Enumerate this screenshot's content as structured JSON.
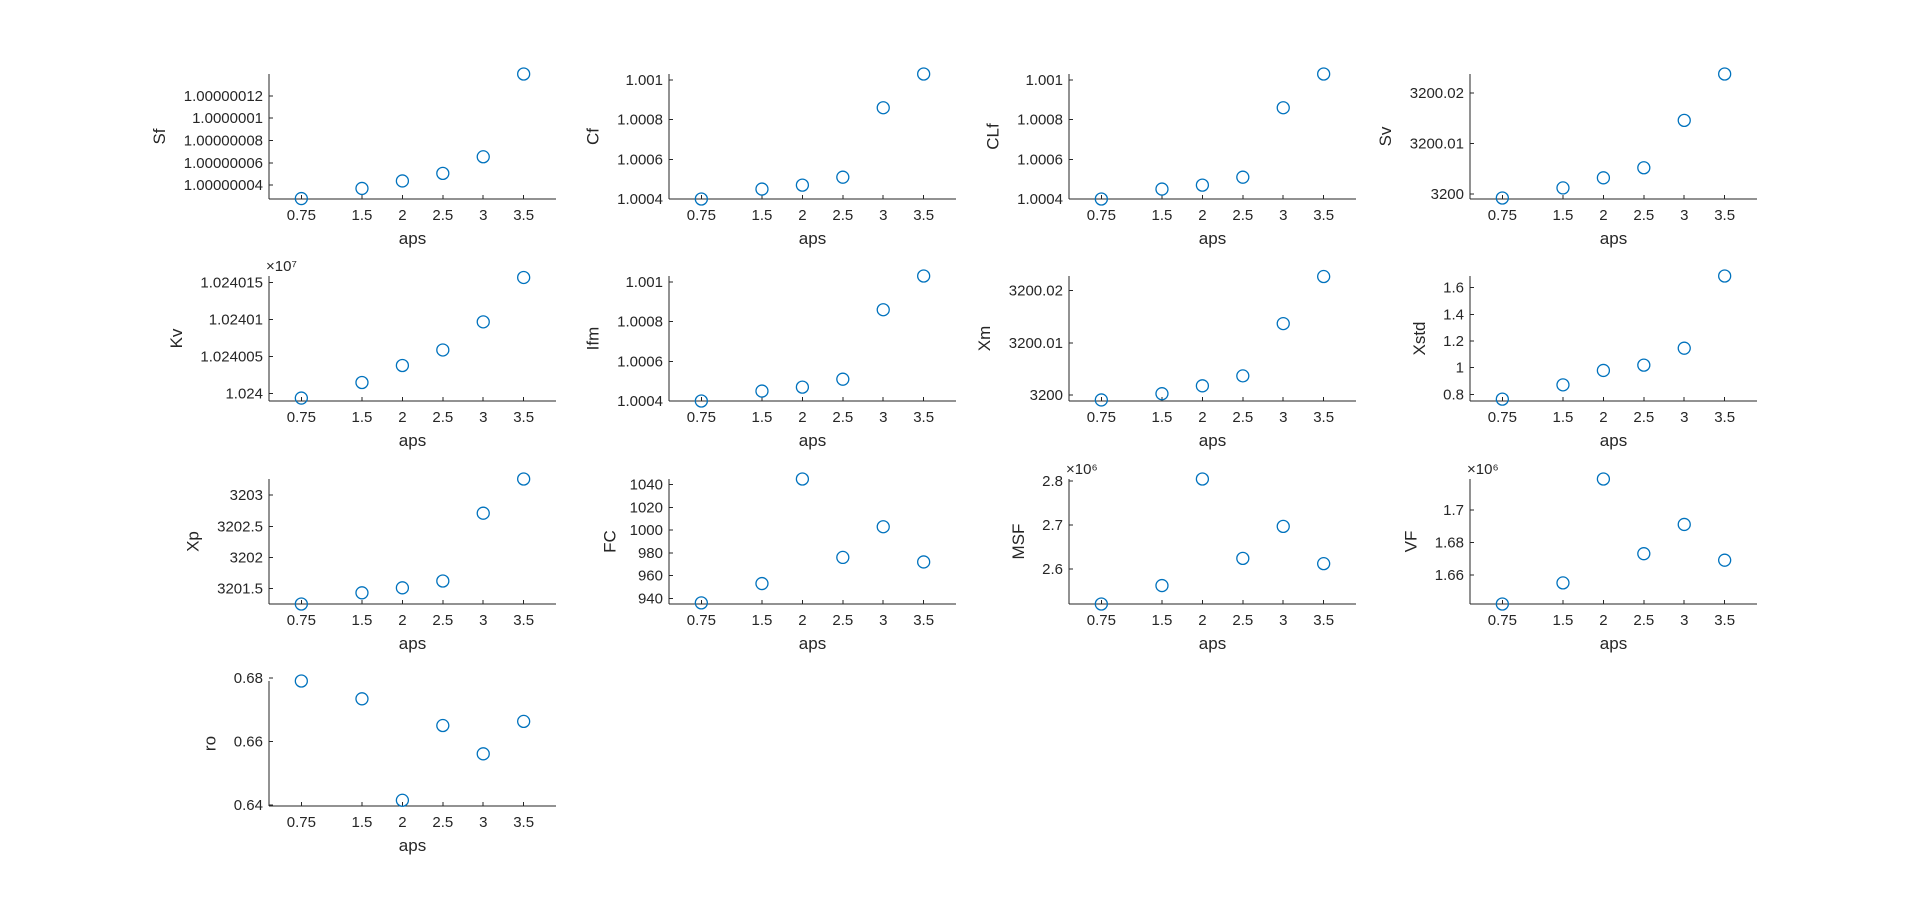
{
  "figure": {
    "marker_color": "#0072BD",
    "axis_color": "#262626",
    "background": "#ffffff"
  },
  "chart_data": [
    {
      "name": "Sf",
      "type": "scatter",
      "xlabel": "aps",
      "ylabel": "Sf",
      "exponent": "",
      "x": [
        0.75,
        1.5,
        2,
        2.5,
        3,
        3.5
      ],
      "y": [
        1.0000000279,
        1.000000037,
        1.0000000437,
        1.0000000505,
        1.0000000654,
        1.0000001397
      ],
      "ylim": [
        1.0000000275,
        1.0000001397
      ],
      "yticks": [
        1.00000004,
        1.00000006,
        1.00000008,
        1.0000001,
        1.00000012
      ],
      "ytick_labels": [
        "1.00000004",
        "1.00000006",
        "1.00000008",
        "1.0000001",
        "1.00000012"
      ],
      "xticks": [
        0.75,
        1.5,
        2,
        2.5,
        3,
        3.5
      ],
      "xtick_labels": [
        "0.75",
        "1.5",
        "2",
        "2.5",
        "3",
        "3.5"
      ]
    },
    {
      "name": "Cf",
      "type": "scatter",
      "xlabel": "aps",
      "ylabel": "Cf",
      "exponent": "",
      "x": [
        0.75,
        1.5,
        2,
        2.5,
        3,
        3.5
      ],
      "y": [
        1.0004,
        1.00045,
        1.00047,
        1.00051,
        1.00086,
        1.00103
      ],
      "ylim": [
        1.0004,
        1.00103
      ],
      "yticks": [
        1.0004,
        1.0006,
        1.0008,
        1.001
      ],
      "ytick_labels": [
        "1.0004",
        "1.0006",
        "1.0008",
        "1.001"
      ],
      "xticks": [
        0.75,
        1.5,
        2,
        2.5,
        3,
        3.5
      ],
      "xtick_labels": [
        "0.75",
        "1.5",
        "2",
        "2.5",
        "3",
        "3.5"
      ]
    },
    {
      "name": "CLf",
      "type": "scatter",
      "xlabel": "aps",
      "ylabel": "CLf",
      "exponent": "",
      "x": [
        0.75,
        1.5,
        2,
        2.5,
        3,
        3.5
      ],
      "y": [
        1.0004,
        1.00045,
        1.00047,
        1.00051,
        1.00086,
        1.00103
      ],
      "ylim": [
        1.0004,
        1.00103
      ],
      "yticks": [
        1.0004,
        1.0006,
        1.0008,
        1.001
      ],
      "ytick_labels": [
        "1.0004",
        "1.0006",
        "1.0008",
        "1.001"
      ],
      "xticks": [
        0.75,
        1.5,
        2,
        2.5,
        3,
        3.5
      ],
      "xtick_labels": [
        "0.75",
        "1.5",
        "2",
        "2.5",
        "3",
        "3.5"
      ]
    },
    {
      "name": "Sv",
      "type": "scatter",
      "xlabel": "aps",
      "ylabel": "Sv",
      "exponent": "",
      "x": [
        0.75,
        1.5,
        2,
        2.5,
        3,
        3.5
      ],
      "y": [
        3199.9992,
        3200.0012,
        3200.0032,
        3200.0052,
        3200.0146,
        3200.0238
      ],
      "ylim": [
        3199.999,
        3200.0238
      ],
      "yticks": [
        3200,
        3200.01,
        3200.02
      ],
      "ytick_labels": [
        "3200",
        "3200.01",
        "3200.02"
      ],
      "xticks": [
        0.75,
        1.5,
        2,
        2.5,
        3,
        3.5
      ],
      "xtick_labels": [
        "0.75",
        "1.5",
        "2",
        "2.5",
        "3",
        "3.5"
      ]
    },
    {
      "name": "Kv",
      "type": "scatter",
      "xlabel": "aps",
      "ylabel": "Kv",
      "exponent": "×10⁷",
      "x": [
        0.75,
        1.5,
        2,
        2.5,
        3,
        3.5
      ],
      "y": [
        1.0239994,
        1.0240015,
        1.0240038,
        1.0240059,
        1.0240097,
        1.0240157
      ],
      "ylim": [
        1.023999,
        1.0240159
      ],
      "yticks": [
        1.024,
        1.024005,
        1.02401,
        1.024015
      ],
      "ytick_labels": [
        "1.024",
        "1.024005",
        "1.02401",
        "1.024015"
      ],
      "xticks": [
        0.75,
        1.5,
        2,
        2.5,
        3,
        3.5
      ],
      "xtick_labels": [
        "0.75",
        "1.5",
        "2",
        "2.5",
        "3",
        "3.5"
      ]
    },
    {
      "name": "Ifm",
      "type": "scatter",
      "xlabel": "aps",
      "ylabel": "Ifm",
      "exponent": "",
      "x": [
        0.75,
        1.5,
        2,
        2.5,
        3,
        3.5
      ],
      "y": [
        1.0004,
        1.00045,
        1.00047,
        1.00051,
        1.00086,
        1.00103
      ],
      "ylim": [
        1.0004,
        1.00103
      ],
      "yticks": [
        1.0004,
        1.0006,
        1.0008,
        1.001
      ],
      "ytick_labels": [
        "1.0004",
        "1.0006",
        "1.0008",
        "1.001"
      ],
      "xticks": [
        0.75,
        1.5,
        2,
        2.5,
        3,
        3.5
      ],
      "xtick_labels": [
        "0.75",
        "1.5",
        "2",
        "2.5",
        "3",
        "3.5"
      ]
    },
    {
      "name": "Xm",
      "type": "scatter",
      "xlabel": "aps",
      "ylabel": "Xm",
      "exponent": "",
      "x": [
        0.75,
        1.5,
        2,
        2.5,
        3,
        3.5
      ],
      "y": [
        3199.9991,
        3200.0003,
        3200.0018,
        3200.0037,
        3200.0137,
        3200.0227
      ],
      "ylim": [
        3199.9989,
        3200.0228
      ],
      "yticks": [
        3200,
        3200.01,
        3200.02
      ],
      "ytick_labels": [
        "3200",
        "3200.01",
        "3200.02"
      ],
      "xticks": [
        0.75,
        1.5,
        2,
        2.5,
        3,
        3.5
      ],
      "xtick_labels": [
        "0.75",
        "1.5",
        "2",
        "2.5",
        "3",
        "3.5"
      ]
    },
    {
      "name": "Xstd",
      "type": "scatter",
      "xlabel": "aps",
      "ylabel": "Xstd",
      "exponent": "",
      "x": [
        0.75,
        1.5,
        2,
        2.5,
        3,
        3.5
      ],
      "y": [
        0.764,
        0.871,
        0.979,
        1.019,
        1.146,
        1.687
      ],
      "ylim": [
        0.75,
        1.687
      ],
      "yticks": [
        0.8,
        1,
        1.2,
        1.4,
        1.6
      ],
      "ytick_labels": [
        "0.8",
        "1",
        "1.2",
        "1.4",
        "1.6"
      ],
      "xticks": [
        0.75,
        1.5,
        2,
        2.5,
        3,
        3.5
      ],
      "xtick_labels": [
        "0.75",
        "1.5",
        "2",
        "2.5",
        "3",
        "3.5"
      ]
    },
    {
      "name": "Xp",
      "type": "scatter",
      "xlabel": "aps",
      "ylabel": "Xp",
      "exponent": "",
      "x": [
        0.75,
        1.5,
        2,
        2.5,
        3,
        3.5
      ],
      "y": [
        3201.25,
        3201.43,
        3201.51,
        3201.62,
        3202.71,
        3203.26
      ],
      "ylim": [
        3201.25,
        3203.26
      ],
      "yticks": [
        3201.5,
        3202,
        3202.5,
        3203
      ],
      "ytick_labels": [
        "3201.5",
        "3202",
        "3202.5",
        "3203"
      ],
      "xticks": [
        0.75,
        1.5,
        2,
        2.5,
        3,
        3.5
      ],
      "xtick_labels": [
        "0.75",
        "1.5",
        "2",
        "2.5",
        "3",
        "3.5"
      ]
    },
    {
      "name": "FC",
      "type": "scatter",
      "xlabel": "aps",
      "ylabel": "FC",
      "exponent": "",
      "x": [
        0.75,
        1.5,
        2,
        2.5,
        3,
        3.5
      ],
      "y": [
        936,
        953,
        1045,
        976,
        1003,
        972
      ],
      "ylim": [
        935,
        1045
      ],
      "yticks": [
        940,
        960,
        980,
        1000,
        1020,
        1040
      ],
      "ytick_labels": [
        "940",
        "960",
        "980",
        "1000",
        "1020",
        "1040"
      ],
      "xticks": [
        0.75,
        1.5,
        2,
        2.5,
        3,
        3.5
      ],
      "xtick_labels": [
        "0.75",
        "1.5",
        "2",
        "2.5",
        "3",
        "3.5"
      ]
    },
    {
      "name": "MSF",
      "type": "scatter",
      "xlabel": "aps",
      "ylabel": "MSF",
      "exponent": "×10⁶",
      "x": [
        0.75,
        1.5,
        2,
        2.5,
        3,
        3.5
      ],
      "y": [
        2.52,
        2.562,
        2.805,
        2.624,
        2.697,
        2.612
      ],
      "ylim": [
        2.52,
        2.805
      ],
      "yticks": [
        2.6,
        2.7,
        2.8
      ],
      "ytick_labels": [
        "2.6",
        "2.7",
        "2.8"
      ],
      "xticks": [
        0.75,
        1.5,
        2,
        2.5,
        3,
        3.5
      ],
      "xtick_labels": [
        "0.75",
        "1.5",
        "2",
        "2.5",
        "3",
        "3.5"
      ]
    },
    {
      "name": "VF",
      "type": "scatter",
      "xlabel": "aps",
      "ylabel": "VF",
      "exponent": "×10⁶",
      "x": [
        0.75,
        1.5,
        2,
        2.5,
        3,
        3.5
      ],
      "y": [
        1.642,
        1.655,
        1.719,
        1.673,
        1.691,
        1.669
      ],
      "ylim": [
        1.642,
        1.719
      ],
      "yticks": [
        1.66,
        1.68,
        1.7
      ],
      "ytick_labels": [
        "1.66",
        "1.68",
        "1.7"
      ],
      "xticks": [
        0.75,
        1.5,
        2,
        2.5,
        3,
        3.5
      ],
      "xtick_labels": [
        "0.75",
        "1.5",
        "2",
        "2.5",
        "3",
        "3.5"
      ]
    },
    {
      "name": "ro",
      "type": "scatter",
      "xlabel": "aps",
      "ylabel": "ro",
      "exponent": "",
      "x": [
        0.75,
        1.5,
        2,
        2.5,
        3,
        3.5
      ],
      "y": [
        0.679,
        0.6734,
        0.6415,
        0.665,
        0.6561,
        0.6663
      ],
      "ylim": [
        0.6397,
        0.679
      ],
      "yticks": [
        0.64,
        0.66,
        0.68
      ],
      "ytick_labels": [
        "0.64",
        "0.66",
        "0.68"
      ],
      "xticks": [
        0.75,
        1.5,
        2,
        2.5,
        3,
        3.5
      ],
      "xtick_labels": [
        "0.75",
        "1.5",
        "2",
        "2.5",
        "3",
        "3.5"
      ]
    }
  ]
}
